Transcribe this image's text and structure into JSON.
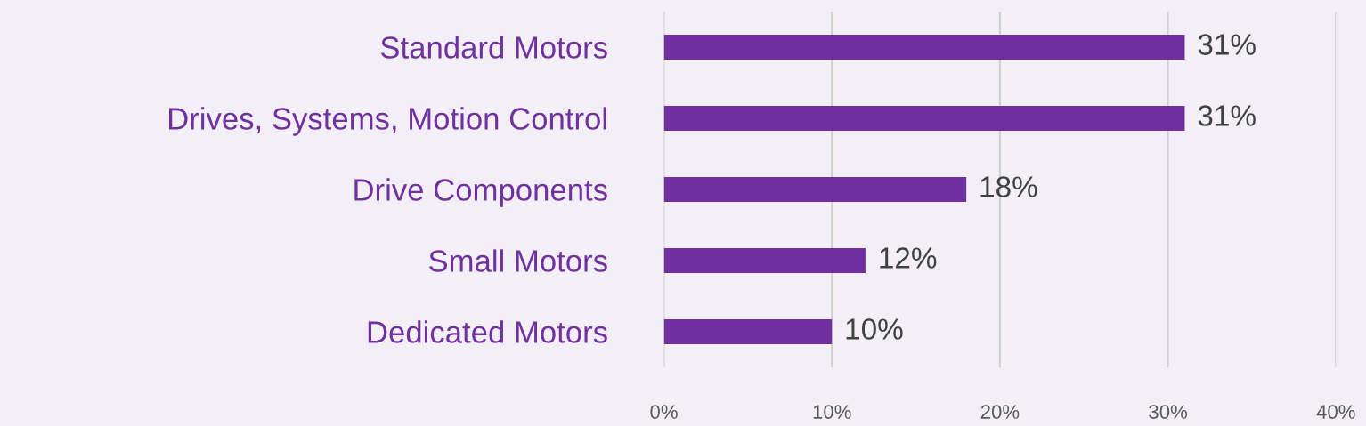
{
  "chart_data": {
    "type": "bar",
    "orientation": "horizontal",
    "categories": [
      "Standard Motors",
      "Drives, Systems, Motion Control",
      "Drive Components",
      "Small Motors",
      "Dedicated Motors"
    ],
    "values": [
      31,
      31,
      18,
      12,
      10
    ],
    "value_labels": [
      "31%",
      "31%",
      "18%",
      "12%",
      "10%"
    ],
    "color": "#7030a0",
    "xlim": [
      0,
      40
    ],
    "xticks": [
      {
        "value": 0,
        "label": "0%"
      },
      {
        "value": 10,
        "label": "10%"
      },
      {
        "value": 20,
        "label": "20%"
      },
      {
        "value": 30,
        "label": "30%"
      },
      {
        "value": 40,
        "label": "40%"
      }
    ],
    "grid": "x",
    "legend": false
  }
}
